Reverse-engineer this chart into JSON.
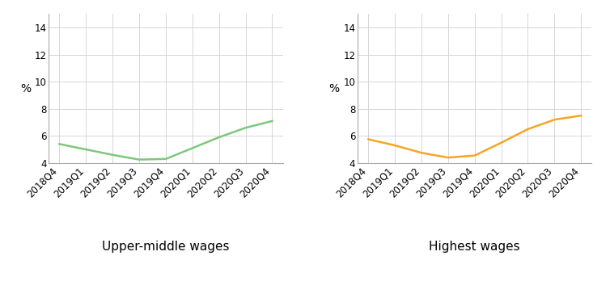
{
  "x_labels": [
    "2018Q4",
    "2019Q1",
    "2019Q2",
    "2019Q3",
    "2019Q4",
    "2020Q1",
    "2020Q2",
    "2020Q3",
    "2020Q4"
  ],
  "green_values": [
    5.4,
    5.0,
    4.6,
    4.25,
    4.3,
    5.1,
    5.9,
    6.6,
    7.1
  ],
  "orange_values": [
    5.75,
    5.3,
    4.75,
    4.4,
    4.55,
    5.5,
    6.5,
    7.2,
    7.5
  ],
  "green_color": "#7dc87d",
  "orange_color": "#f5a623",
  "ylim": [
    4,
    15
  ],
  "yticks": [
    4,
    6,
    8,
    10,
    12,
    14
  ],
  "ylabel": "%",
  "left_title": "Upper-middle wages",
  "right_title": "Highest wages",
  "background_color": "#ffffff",
  "grid_color": "#d0d0d0",
  "spine_color": "#aaaaaa",
  "tick_fontsize": 8.5,
  "ylabel_fontsize": 10,
  "subtitle_fontsize": 11,
  "line_width": 1.8
}
